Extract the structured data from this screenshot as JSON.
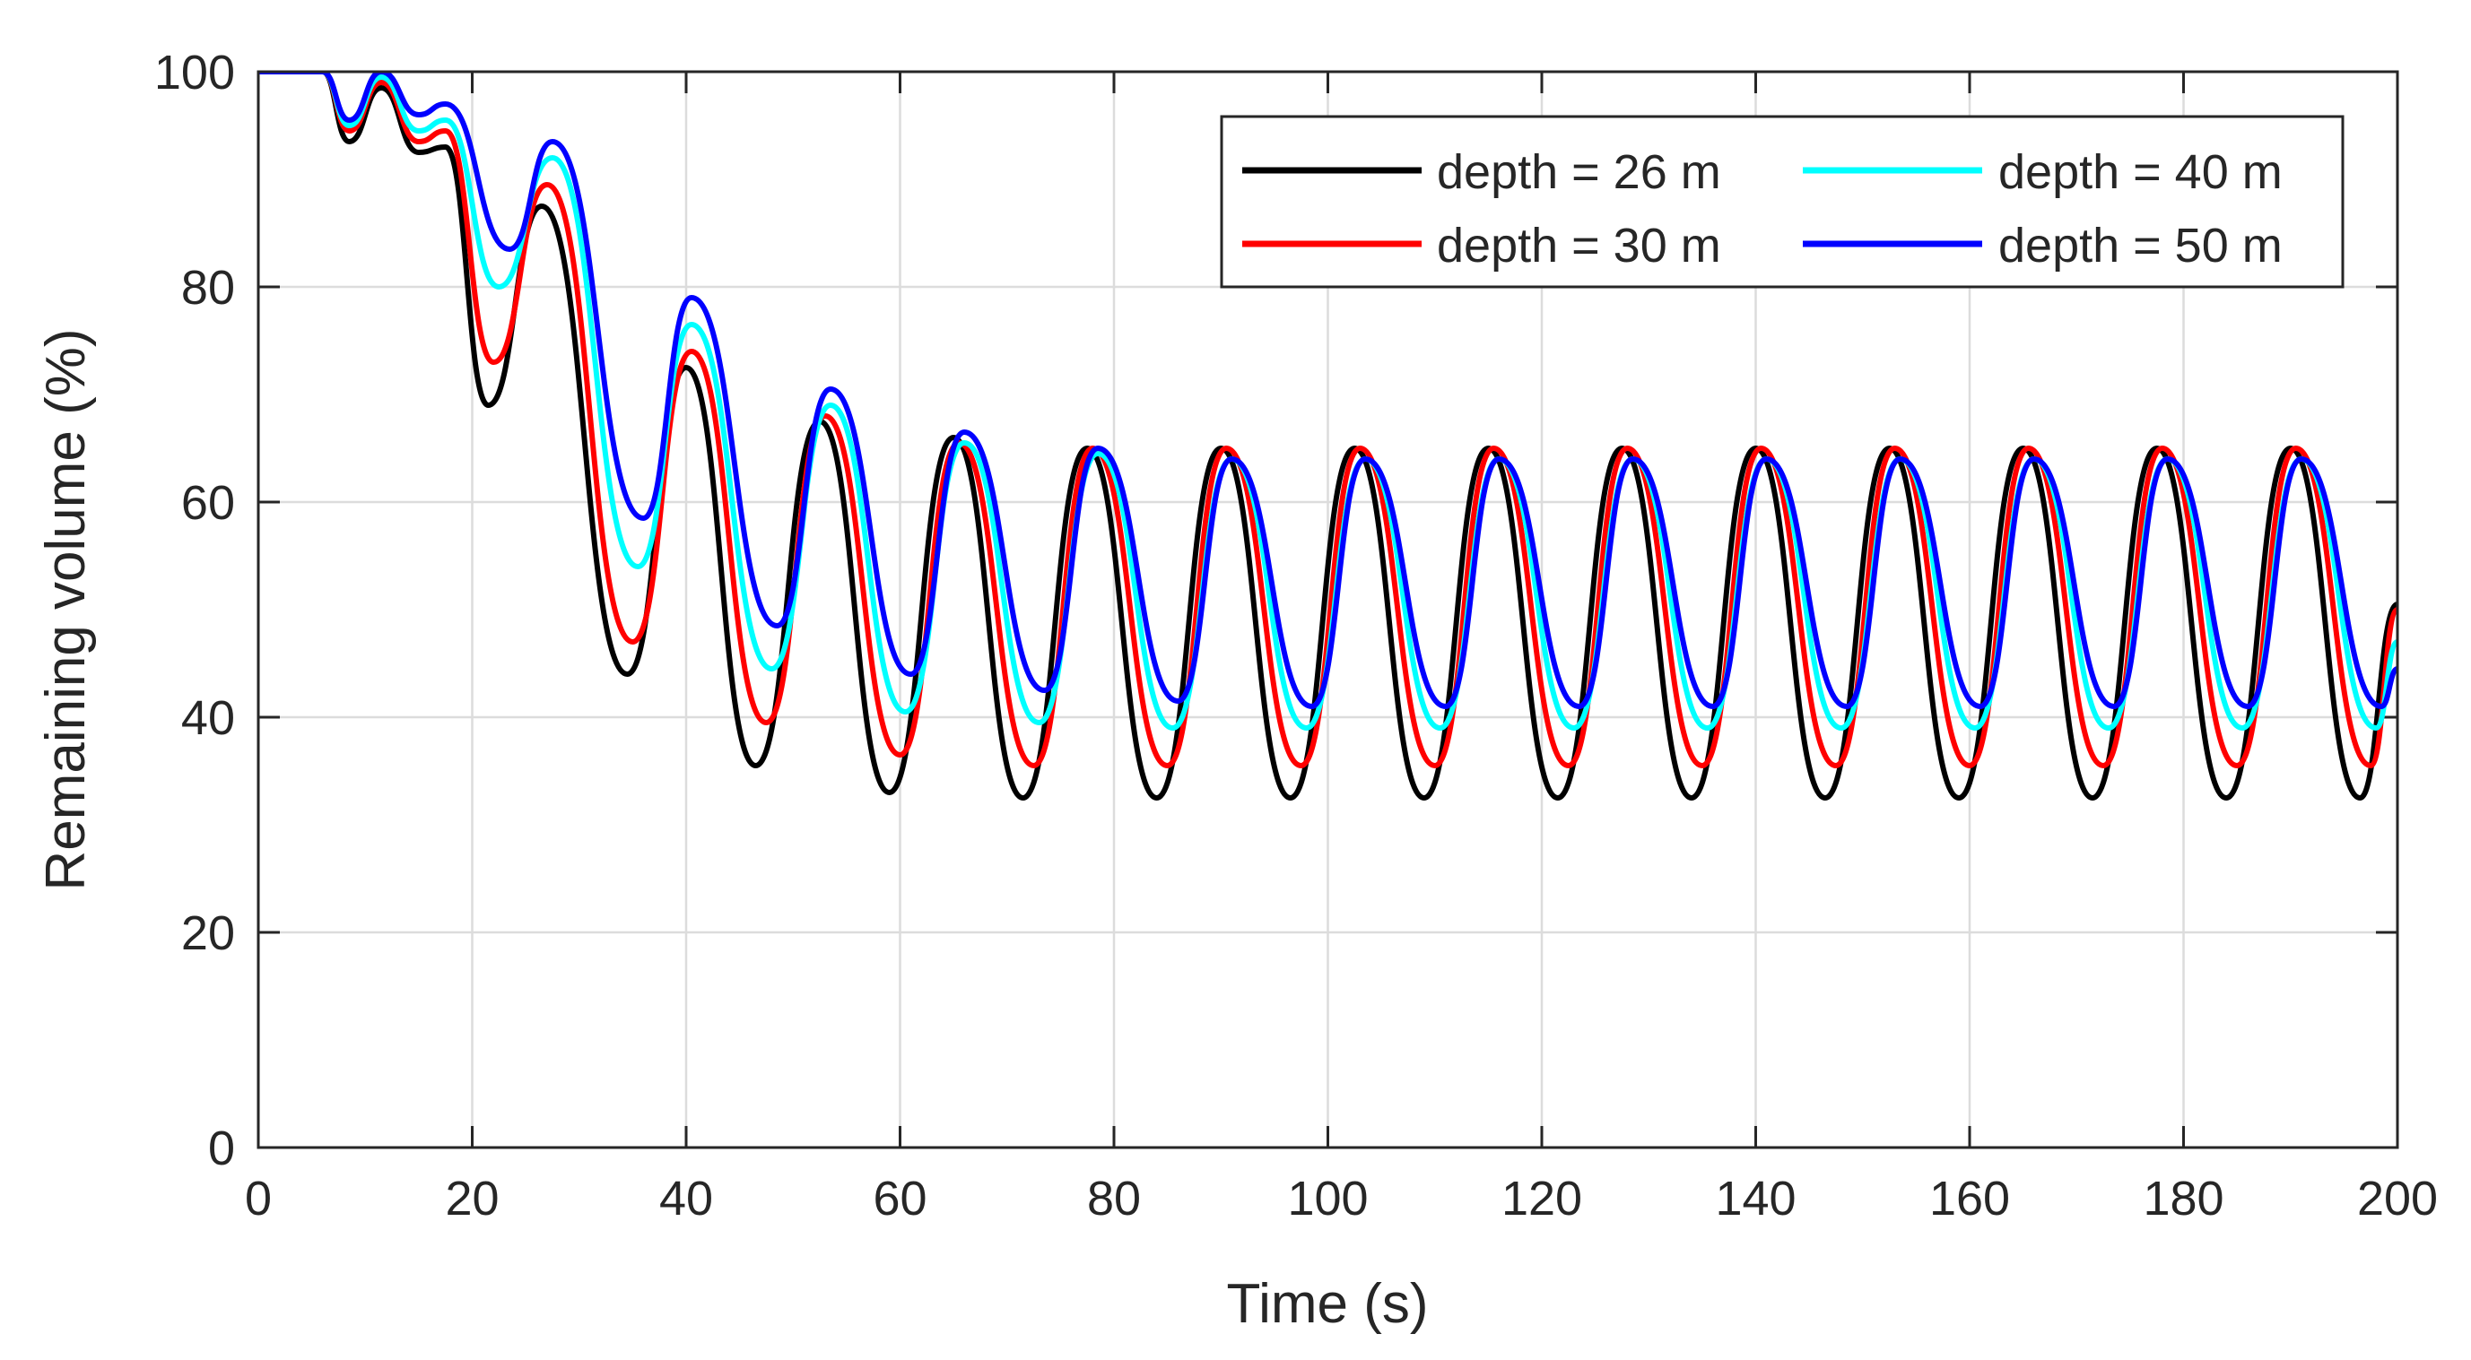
{
  "chart_data": {
    "type": "line",
    "title": "",
    "xlabel": "Time (s)",
    "ylabel": "Remaining volume (%)",
    "xlim": [
      0,
      200
    ],
    "ylim": [
      0,
      100
    ],
    "xticks": [
      0,
      20,
      40,
      60,
      80,
      100,
      120,
      140,
      160,
      180,
      200
    ],
    "yticks": [
      0,
      20,
      40,
      60,
      80,
      100
    ],
    "grid": true,
    "legend_position": "top-right",
    "series": [
      {
        "name": "depth = 26 m",
        "color": "#000000",
        "x": [
          0,
          6,
          8.5,
          11.5,
          15,
          17.5,
          21.5,
          26.5,
          34.5,
          40,
          46.5,
          52.5,
          59,
          65,
          71.5,
          77.5,
          84,
          90,
          96.5,
          102.5,
          109,
          115,
          121.5,
          127.5,
          134,
          140,
          146.5,
          152.5,
          159,
          165,
          171.5,
          177.5,
          184,
          190,
          196.5,
          200
        ],
        "y": [
          100,
          100,
          93.5,
          98.5,
          92.5,
          93,
          69,
          87.5,
          44,
          72.5,
          35.5,
          67.5,
          33,
          66,
          32.5,
          65,
          32.5,
          65,
          32.5,
          65,
          32.5,
          65,
          32.5,
          65,
          32.5,
          65,
          32.5,
          65,
          32.5,
          65,
          32.5,
          65,
          32.5,
          65,
          32.5,
          50.5
        ]
      },
      {
        "name": "depth = 30 m",
        "color": "#ff0000",
        "x": [
          0,
          6,
          8.5,
          11.5,
          15,
          17.5,
          22,
          27,
          35,
          40.5,
          47.5,
          53,
          60,
          65.5,
          72.5,
          78,
          85,
          90.5,
          97.5,
          103,
          110,
          115.5,
          122.5,
          128,
          135,
          140.5,
          147.5,
          153,
          160,
          165.5,
          172.5,
          178,
          185,
          190.5,
          197.5,
          200
        ],
        "y": [
          100,
          100,
          94.5,
          99,
          93.5,
          94.5,
          73,
          89.5,
          47,
          74,
          39.5,
          68,
          36.5,
          65.5,
          35.5,
          65,
          35.5,
          65,
          35.5,
          65,
          35.5,
          65,
          35.5,
          65,
          35.5,
          65,
          35.5,
          65,
          35.5,
          65,
          35.5,
          65,
          35.5,
          65,
          35.5,
          50
        ]
      },
      {
        "name": "depth = 40 m",
        "color": "#00ffff",
        "x": [
          0,
          6,
          8.5,
          11.5,
          15,
          17.5,
          22.5,
          27.5,
          35.5,
          40.5,
          48,
          53.5,
          60.5,
          66,
          73,
          78.5,
          85.5,
          91,
          98,
          103.5,
          110.5,
          116,
          123,
          128.5,
          135.5,
          141,
          148,
          153.5,
          160.5,
          166,
          173,
          178.5,
          185.5,
          191,
          198,
          200
        ],
        "y": [
          100,
          100,
          95,
          99.5,
          94.5,
          95.5,
          80,
          92,
          54,
          76.5,
          44.5,
          69,
          40.5,
          65.5,
          39.5,
          64.5,
          39,
          64,
          39,
          64,
          39,
          64,
          39,
          64,
          39,
          64,
          39,
          64,
          39,
          64,
          39,
          64,
          39,
          64,
          39,
          47
        ]
      },
      {
        "name": "depth = 50 m",
        "color": "#0000ff",
        "x": [
          0,
          6,
          8.5,
          11.5,
          15,
          17.5,
          23.5,
          27.5,
          36,
          40.5,
          48.5,
          53.5,
          61,
          66,
          73.5,
          78.5,
          86,
          91,
          98.5,
          103.5,
          111,
          116,
          123.5,
          128.5,
          136,
          141,
          148.5,
          153.5,
          161,
          166,
          173.5,
          178.5,
          186,
          191,
          198.5,
          200
        ],
        "y": [
          100,
          100,
          95.5,
          100,
          96,
          97,
          83.5,
          93.5,
          58.5,
          79,
          48.5,
          70.5,
          44,
          66.5,
          42.5,
          65,
          41.5,
          64,
          41,
          64,
          41,
          64,
          41,
          64,
          41,
          64,
          41,
          64,
          41,
          64,
          41,
          64,
          41,
          64,
          41,
          44.5
        ]
      }
    ]
  }
}
